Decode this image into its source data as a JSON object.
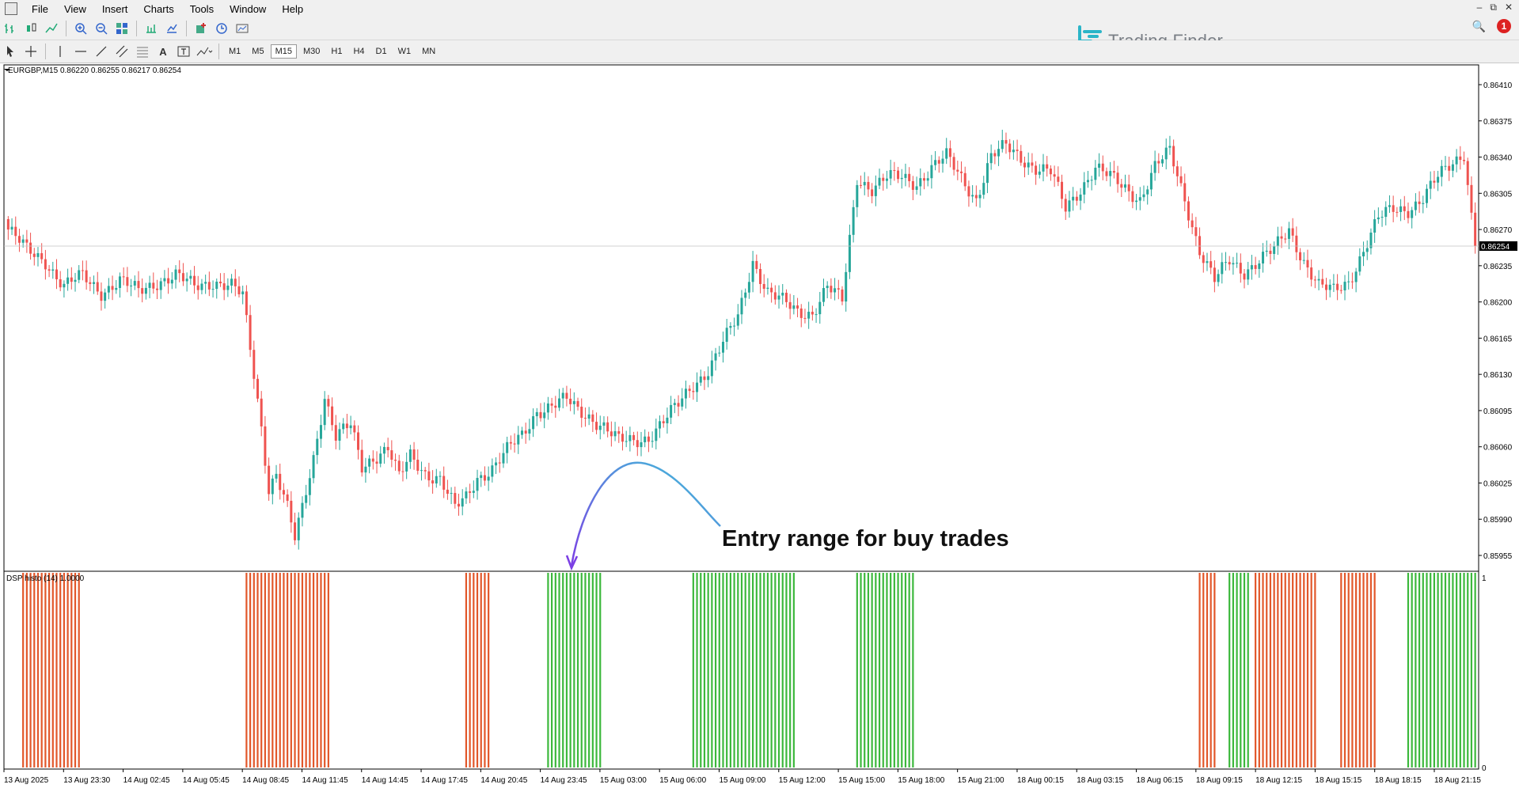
{
  "menu": [
    "File",
    "View",
    "Insert",
    "Charts",
    "Tools",
    "Window",
    "Help"
  ],
  "brand": {
    "name": "Trading Finder",
    "color": "#2bb5c8"
  },
  "toolbar1_icons": [
    "bar-chart-icon",
    "candle-chart-icon",
    "line-chart-icon",
    "zoom-in-icon",
    "zoom-out-icon",
    "tile-windows-icon",
    "scroll-end-icon",
    "autoscroll-icon",
    "indicators-icon",
    "period-icon",
    "templates-icon"
  ],
  "toolbar2_icons": [
    "cursor-icon",
    "crosshair-icon",
    "vertical-line-icon",
    "horizontal-line-icon",
    "trendline-icon",
    "channel-icon",
    "fibonacci-icon",
    "text-icon",
    "text-label-icon",
    "shapes-icon"
  ],
  "timeframes": [
    "M1",
    "M5",
    "M15",
    "M30",
    "H1",
    "H4",
    "D1",
    "W1",
    "MN"
  ],
  "active_timeframe": "M15",
  "notification_count": "1",
  "chart": {
    "symbol_info": "EURGBP,M15  0.86220 0.86255 0.86217 0.86254",
    "current_price": "0.86254",
    "annotation": "Entry range for buy trades",
    "indicator_label": "DSP histo (14) 1.0000",
    "indicator_scale_top": "1",
    "indicator_scale_bottom": "0",
    "bull_color": "#26a69a",
    "bear_color": "#ef5350",
    "histo_buy_color": "#3cb83c",
    "histo_sell_color": "#e2572a",
    "price_ticks": [
      "0.86410",
      "0.86375",
      "0.86340",
      "0.86305",
      "0.86270",
      "0.86235",
      "0.86200",
      "0.86165",
      "0.86130",
      "0.86095",
      "0.86060",
      "0.86025",
      "0.85990",
      "0.85955"
    ],
    "price_tick_values": [
      0.8641,
      0.86375,
      0.8634,
      0.86305,
      0.8627,
      0.86235,
      0.862,
      0.86165,
      0.8613,
      0.86095,
      0.8606,
      0.86025,
      0.8599,
      0.85955
    ],
    "time_ticks": [
      "13 Aug 2025",
      "13 Aug 23:30",
      "14 Aug 02:45",
      "14 Aug 05:45",
      "14 Aug 08:45",
      "14 Aug 11:45",
      "14 Aug 14:45",
      "14 Aug 17:45",
      "14 Aug 20:45",
      "14 Aug 23:45",
      "15 Aug 03:00",
      "15 Aug 06:00",
      "15 Aug 09:00",
      "15 Aug 12:00",
      "15 Aug 15:00",
      "15 Aug 18:00",
      "15 Aug 21:00",
      "18 Aug 00:15",
      "18 Aug 03:15",
      "18 Aug 06:15",
      "18 Aug 09:15",
      "18 Aug 12:15",
      "18 Aug 15:15",
      "18 Aug 18:15",
      "18 Aug 21:15"
    ],
    "close_path": [
      [
        0,
        0.8627
      ],
      [
        5,
        0.8625
      ],
      [
        10,
        0.8624
      ],
      [
        15,
        0.86215
      ],
      [
        20,
        0.86225
      ],
      [
        25,
        0.8621
      ],
      [
        30,
        0.8622
      ],
      [
        35,
        0.8621
      ],
      [
        40,
        0.8622
      ],
      [
        45,
        0.86225
      ],
      [
        50,
        0.86215
      ],
      [
        55,
        0.8622
      ],
      [
        60,
        0.86215
      ],
      [
        63,
        0.86205
      ],
      [
        66,
        0.8613
      ],
      [
        68,
        0.8608
      ],
      [
        70,
        0.8602
      ],
      [
        72,
        0.86035
      ],
      [
        75,
        0.86
      ],
      [
        77,
        0.8597
      ],
      [
        79,
        0.86
      ],
      [
        82,
        0.8605
      ],
      [
        85,
        0.8611
      ],
      [
        88,
        0.8607
      ],
      [
        92,
        0.8608
      ],
      [
        95,
        0.8604
      ],
      [
        98,
        0.8605
      ],
      [
        102,
        0.8606
      ],
      [
        105,
        0.8603
      ],
      [
        108,
        0.8605
      ],
      [
        112,
        0.86035
      ],
      [
        116,
        0.8603
      ],
      [
        120,
        0.86
      ],
      [
        123,
        0.8601
      ],
      [
        126,
        0.8603
      ],
      [
        130,
        0.8604
      ],
      [
        135,
        0.8606
      ],
      [
        138,
        0.8607
      ],
      [
        142,
        0.86095
      ],
      [
        146,
        0.861
      ],
      [
        150,
        0.86105
      ],
      [
        153,
        0.86095
      ],
      [
        156,
        0.8609
      ],
      [
        160,
        0.8608
      ],
      [
        164,
        0.86065
      ],
      [
        168,
        0.86065
      ],
      [
        172,
        0.8607
      ],
      [
        176,
        0.86085
      ],
      [
        180,
        0.861
      ],
      [
        184,
        0.8612
      ],
      [
        188,
        0.86135
      ],
      [
        192,
        0.8616
      ],
      [
        196,
        0.86185
      ],
      [
        200,
        0.8624
      ],
      [
        204,
        0.8621
      ],
      [
        208,
        0.862
      ],
      [
        212,
        0.8619
      ],
      [
        216,
        0.8619
      ],
      [
        220,
        0.86215
      ],
      [
        224,
        0.862
      ],
      [
        226,
        0.8626
      ],
      [
        228,
        0.8632
      ],
      [
        232,
        0.8631
      ],
      [
        236,
        0.8632
      ],
      [
        240,
        0.8632
      ],
      [
        244,
        0.86315
      ],
      [
        248,
        0.8633
      ],
      [
        252,
        0.8634
      ],
      [
        256,
        0.8632
      ],
      [
        260,
        0.863
      ],
      [
        264,
        0.8634
      ],
      [
        268,
        0.8635
      ],
      [
        272,
        0.8634
      ],
      [
        276,
        0.8633
      ],
      [
        280,
        0.86325
      ],
      [
        284,
        0.8629
      ],
      [
        288,
        0.8631
      ],
      [
        292,
        0.8633
      ],
      [
        296,
        0.8632
      ],
      [
        300,
        0.8631
      ],
      [
        304,
        0.863
      ],
      [
        308,
        0.8633
      ],
      [
        312,
        0.86345
      ],
      [
        316,
        0.863
      ],
      [
        320,
        0.8625
      ],
      [
        324,
        0.8622
      ],
      [
        328,
        0.8624
      ],
      [
        332,
        0.8623
      ],
      [
        336,
        0.8624
      ],
      [
        340,
        0.8625
      ],
      [
        344,
        0.8627
      ],
      [
        348,
        0.8624
      ],
      [
        352,
        0.86215
      ],
      [
        356,
        0.8621
      ],
      [
        360,
        0.8622
      ],
      [
        364,
        0.8625
      ],
      [
        368,
        0.8628
      ],
      [
        372,
        0.8629
      ],
      [
        376,
        0.8629
      ],
      [
        380,
        0.863
      ],
      [
        384,
        0.8632
      ],
      [
        388,
        0.86335
      ],
      [
        391,
        0.86345
      ],
      [
        394,
        0.86254
      ]
    ],
    "histo_blocks": [
      {
        "from": 4,
        "to": 19,
        "side": "sell"
      },
      {
        "from": 64,
        "to": 86,
        "side": "sell"
      },
      {
        "from": 123,
        "to": 129,
        "side": "sell"
      },
      {
        "from": 145,
        "to": 159,
        "side": "buy"
      },
      {
        "from": 184,
        "to": 211,
        "side": "buy"
      },
      {
        "from": 228,
        "to": 243,
        "side": "buy"
      },
      {
        "from": 320,
        "to": 324,
        "side": "sell"
      },
      {
        "from": 328,
        "to": 333,
        "side": "buy"
      },
      {
        "from": 335,
        "to": 351,
        "side": "sell"
      },
      {
        "from": 358,
        "to": 367,
        "side": "sell"
      },
      {
        "from": 376,
        "to": 394,
        "side": "buy"
      }
    ],
    "ann_color_start": "#7b3fe4",
    "ann_color_end": "#3ec6d8"
  }
}
